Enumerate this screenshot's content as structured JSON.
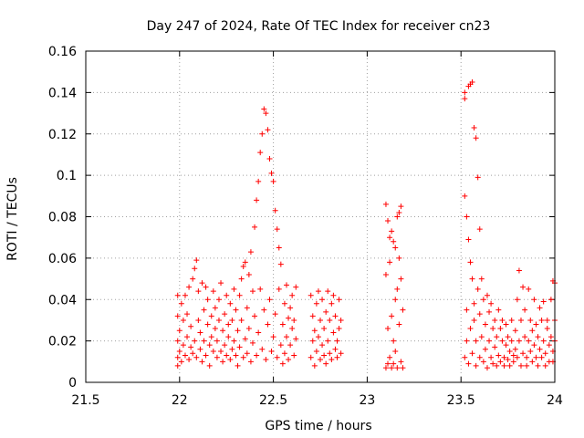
{
  "chart_data": {
    "type": "scatter",
    "title": "Day 247 of 2024, Rate Of TEC Index for receiver cn23",
    "xlabel": "GPS time / hours",
    "ylabel": "ROTI / TECUs",
    "xlim": [
      21.5,
      24
    ],
    "ylim": [
      0,
      0.16
    ],
    "xticks": [
      21.5,
      22,
      22.5,
      23,
      23.5,
      24
    ],
    "xtick_labels": [
      "21.5",
      "22",
      "22.5",
      "23",
      "23.5",
      "24"
    ],
    "yticks": [
      0,
      0.02,
      0.04,
      0.06,
      0.08,
      0.1,
      0.12,
      0.14,
      0.16
    ],
    "ytick_labels": [
      "0",
      "0.02",
      "0.04",
      "0.06",
      "0.08",
      "0.1",
      "0.12",
      "0.14",
      "0.16"
    ],
    "grid": true,
    "marker": "+",
    "marker_color": "#ff0000",
    "series": [
      {
        "name": "ROTI",
        "points": [
          [
            21.99,
            0.012
          ],
          [
            21.99,
            0.02
          ],
          [
            21.99,
            0.032
          ],
          [
            21.99,
            0.042
          ],
          [
            21.99,
            0.008
          ],
          [
            22.0,
            0.015
          ],
          [
            22.0,
            0.025
          ],
          [
            22.01,
            0.038
          ],
          [
            22.01,
            0.01
          ],
          [
            22.02,
            0.018
          ],
          [
            22.02,
            0.03
          ],
          [
            22.03,
            0.042
          ],
          [
            22.03,
            0.013
          ],
          [
            22.04,
            0.022
          ],
          [
            22.04,
            0.033
          ],
          [
            22.05,
            0.046
          ],
          [
            22.05,
            0.011
          ],
          [
            22.06,
            0.017
          ],
          [
            22.06,
            0.027
          ],
          [
            22.07,
            0.05
          ],
          [
            22.07,
            0.014
          ],
          [
            22.08,
            0.02
          ],
          [
            22.08,
            0.055
          ],
          [
            22.09,
            0.059
          ],
          [
            22.09,
            0.012
          ],
          [
            22.1,
            0.03
          ],
          [
            22.1,
            0.044
          ],
          [
            22.11,
            0.016
          ],
          [
            22.11,
            0.024
          ],
          [
            22.12,
            0.048
          ],
          [
            22.12,
            0.01
          ],
          [
            22.13,
            0.035
          ],
          [
            22.13,
            0.02
          ],
          [
            22.14,
            0.046
          ],
          [
            22.14,
            0.013
          ],
          [
            22.15,
            0.028
          ],
          [
            22.15,
            0.04
          ],
          [
            22.16,
            0.018
          ],
          [
            22.16,
            0.008
          ],
          [
            22.17,
            0.032
          ],
          [
            22.17,
            0.022
          ],
          [
            22.18,
            0.044
          ],
          [
            22.18,
            0.015
          ],
          [
            22.19,
            0.026
          ],
          [
            22.19,
            0.036
          ],
          [
            22.2,
            0.012
          ],
          [
            22.2,
            0.02
          ],
          [
            22.21,
            0.04
          ],
          [
            22.21,
            0.03
          ],
          [
            22.22,
            0.015
          ],
          [
            22.22,
            0.048
          ],
          [
            22.23,
            0.025
          ],
          [
            22.23,
            0.01
          ],
          [
            22.24,
            0.033
          ],
          [
            22.24,
            0.018
          ],
          [
            22.25,
            0.042
          ],
          [
            22.25,
            0.013
          ],
          [
            22.26,
            0.028
          ],
          [
            22.26,
            0.022
          ],
          [
            22.27,
            0.038
          ],
          [
            22.27,
            0.011
          ],
          [
            22.28,
            0.03
          ],
          [
            22.28,
            0.016
          ],
          [
            22.29,
            0.045
          ],
          [
            22.29,
            0.02
          ],
          [
            22.3,
            0.013
          ],
          [
            22.3,
            0.035
          ],
          [
            22.31,
            0.025
          ],
          [
            22.31,
            0.008
          ],
          [
            22.32,
            0.042
          ],
          [
            22.32,
            0.017
          ],
          [
            22.33,
            0.03
          ],
          [
            22.33,
            0.05
          ],
          [
            22.34,
            0.056
          ],
          [
            22.34,
            0.012
          ],
          [
            22.35,
            0.021
          ],
          [
            22.35,
            0.058
          ],
          [
            22.36,
            0.036
          ],
          [
            22.36,
            0.014
          ],
          [
            22.37,
            0.052
          ],
          [
            22.37,
            0.026
          ],
          [
            22.38,
            0.063
          ],
          [
            22.38,
            0.01
          ],
          [
            22.39,
            0.044
          ],
          [
            22.39,
            0.019
          ],
          [
            22.4,
            0.075
          ],
          [
            22.4,
            0.032
          ],
          [
            22.41,
            0.088
          ],
          [
            22.41,
            0.013
          ],
          [
            22.42,
            0.097
          ],
          [
            22.42,
            0.024
          ],
          [
            22.43,
            0.111
          ],
          [
            22.43,
            0.045
          ],
          [
            22.44,
            0.12
          ],
          [
            22.44,
            0.016
          ],
          [
            22.45,
            0.132
          ],
          [
            22.45,
            0.035
          ],
          [
            22.46,
            0.13
          ],
          [
            22.46,
            0.011
          ],
          [
            22.47,
            0.122
          ],
          [
            22.47,
            0.028
          ],
          [
            22.48,
            0.108
          ],
          [
            22.48,
            0.04
          ],
          [
            22.49,
            0.101
          ],
          [
            22.49,
            0.015
          ],
          [
            22.5,
            0.097
          ],
          [
            22.5,
            0.022
          ],
          [
            22.51,
            0.083
          ],
          [
            22.51,
            0.033
          ],
          [
            22.52,
            0.074
          ],
          [
            22.52,
            0.012
          ],
          [
            22.53,
            0.065
          ],
          [
            22.53,
            0.045
          ],
          [
            22.54,
            0.057
          ],
          [
            22.54,
            0.018
          ],
          [
            22.55,
            0.028
          ],
          [
            22.55,
            0.009
          ],
          [
            22.56,
            0.038
          ],
          [
            22.56,
            0.014
          ],
          [
            22.57,
            0.047
          ],
          [
            22.57,
            0.022
          ],
          [
            22.58,
            0.031
          ],
          [
            22.58,
            0.011
          ],
          [
            22.59,
            0.036
          ],
          [
            22.59,
            0.018
          ],
          [
            22.6,
            0.026
          ],
          [
            22.6,
            0.042
          ],
          [
            22.61,
            0.013
          ],
          [
            22.61,
            0.03
          ],
          [
            22.62,
            0.021
          ],
          [
            22.62,
            0.046
          ],
          [
            22.7,
            0.042
          ],
          [
            22.7,
            0.012
          ],
          [
            22.71,
            0.02
          ],
          [
            22.71,
            0.032
          ],
          [
            22.72,
            0.008
          ],
          [
            22.72,
            0.025
          ],
          [
            22.73,
            0.038
          ],
          [
            22.73,
            0.015
          ],
          [
            22.74,
            0.022
          ],
          [
            22.74,
            0.044
          ],
          [
            22.75,
            0.011
          ],
          [
            22.75,
            0.03
          ],
          [
            22.76,
            0.018
          ],
          [
            22.76,
            0.04
          ],
          [
            22.77,
            0.013
          ],
          [
            22.77,
            0.026
          ],
          [
            22.78,
            0.034
          ],
          [
            22.78,
            0.009
          ],
          [
            22.79,
            0.02
          ],
          [
            22.79,
            0.044
          ],
          [
            22.8,
            0.014
          ],
          [
            22.8,
            0.03
          ],
          [
            22.81,
            0.038
          ],
          [
            22.81,
            0.011
          ],
          [
            22.82,
            0.024
          ],
          [
            22.82,
            0.042
          ],
          [
            22.83,
            0.016
          ],
          [
            22.83,
            0.032
          ],
          [
            22.84,
            0.02
          ],
          [
            22.84,
            0.012
          ],
          [
            22.85,
            0.04
          ],
          [
            22.85,
            0.026
          ],
          [
            22.86,
            0.014
          ],
          [
            22.86,
            0.03
          ],
          [
            23.1,
            0.086
          ],
          [
            23.1,
            0.052
          ],
          [
            23.1,
            0.007
          ],
          [
            23.11,
            0.078
          ],
          [
            23.11,
            0.026
          ],
          [
            23.11,
            0.009
          ],
          [
            23.12,
            0.07
          ],
          [
            23.12,
            0.058
          ],
          [
            23.12,
            0.012
          ],
          [
            23.13,
            0.073
          ],
          [
            23.13,
            0.032
          ],
          [
            23.13,
            0.007
          ],
          [
            23.14,
            0.068
          ],
          [
            23.14,
            0.02
          ],
          [
            23.14,
            0.009
          ],
          [
            23.15,
            0.065
          ],
          [
            23.15,
            0.04
          ],
          [
            23.15,
            0.015
          ],
          [
            23.16,
            0.08
          ],
          [
            23.16,
            0.045
          ],
          [
            23.16,
            0.007
          ],
          [
            23.17,
            0.082
          ],
          [
            23.17,
            0.06
          ],
          [
            23.17,
            0.028
          ],
          [
            23.18,
            0.085
          ],
          [
            23.18,
            0.05
          ],
          [
            23.18,
            0.01
          ],
          [
            23.19,
            0.035
          ],
          [
            23.19,
            0.007
          ],
          [
            23.52,
            0.14
          ],
          [
            23.52,
            0.137
          ],
          [
            23.52,
            0.09
          ],
          [
            23.52,
            0.012
          ],
          [
            23.53,
            0.08
          ],
          [
            23.53,
            0.02
          ],
          [
            23.53,
            0.035
          ],
          [
            23.54,
            0.143
          ],
          [
            23.54,
            0.069
          ],
          [
            23.54,
            0.009
          ],
          [
            23.55,
            0.144
          ],
          [
            23.55,
            0.058
          ],
          [
            23.55,
            0.026
          ],
          [
            23.56,
            0.145
          ],
          [
            23.56,
            0.05
          ],
          [
            23.56,
            0.014
          ],
          [
            23.57,
            0.123
          ],
          [
            23.57,
            0.038
          ],
          [
            23.57,
            0.03
          ],
          [
            23.58,
            0.118
          ],
          [
            23.58,
            0.02
          ],
          [
            23.58,
            0.008
          ],
          [
            23.59,
            0.099
          ],
          [
            23.59,
            0.045
          ],
          [
            23.6,
            0.074
          ],
          [
            23.6,
            0.033
          ],
          [
            23.6,
            0.012
          ],
          [
            23.61,
            0.05
          ],
          [
            23.61,
            0.022
          ],
          [
            23.62,
            0.04
          ],
          [
            23.62,
            0.01
          ],
          [
            23.63,
            0.028
          ],
          [
            23.63,
            0.016
          ],
          [
            23.64,
            0.042
          ],
          [
            23.64,
            0.007
          ],
          [
            23.65,
            0.034
          ],
          [
            23.65,
            0.02
          ],
          [
            23.66,
            0.038
          ],
          [
            23.66,
            0.012
          ],
          [
            23.67,
            0.026
          ],
          [
            23.67,
            0.009
          ],
          [
            23.68,
            0.03
          ],
          [
            23.68,
            0.017
          ],
          [
            23.69,
            0.022
          ],
          [
            23.69,
            0.008
          ],
          [
            23.7,
            0.035
          ],
          [
            23.7,
            0.013
          ],
          [
            23.71,
            0.026
          ],
          [
            23.71,
            0.01
          ],
          [
            23.72,
            0.02
          ],
          [
            23.72,
            0.03
          ],
          [
            23.73,
            0.012
          ],
          [
            23.73,
            0.008
          ],
          [
            23.74,
            0.018
          ],
          [
            23.74,
            0.028
          ],
          [
            23.75,
            0.011
          ],
          [
            23.75,
            0.022
          ],
          [
            23.76,
            0.015
          ],
          [
            23.76,
            0.008
          ],
          [
            23.77,
            0.02
          ],
          [
            23.77,
            0.03
          ],
          [
            23.78,
            0.013
          ],
          [
            23.78,
            0.01
          ],
          [
            23.79,
            0.025
          ],
          [
            23.79,
            0.016
          ],
          [
            23.8,
            0.04
          ],
          [
            23.8,
            0.012
          ],
          [
            23.81,
            0.054
          ],
          [
            23.81,
            0.02
          ],
          [
            23.82,
            0.03
          ],
          [
            23.82,
            0.008
          ],
          [
            23.83,
            0.046
          ],
          [
            23.83,
            0.014
          ],
          [
            23.84,
            0.022
          ],
          [
            23.84,
            0.035
          ],
          [
            23.85,
            0.012
          ],
          [
            23.85,
            0.008
          ],
          [
            23.86,
            0.045
          ],
          [
            23.86,
            0.02
          ],
          [
            23.87,
            0.03
          ],
          [
            23.87,
            0.015
          ],
          [
            23.88,
            0.025
          ],
          [
            23.88,
            0.01
          ],
          [
            23.89,
            0.04
          ],
          [
            23.89,
            0.018
          ],
          [
            23.9,
            0.028
          ],
          [
            23.9,
            0.012
          ],
          [
            23.91,
            0.022
          ],
          [
            23.91,
            0.008
          ],
          [
            23.92,
            0.036
          ],
          [
            23.92,
            0.016
          ],
          [
            23.93,
            0.03
          ],
          [
            23.93,
            0.012
          ],
          [
            23.94,
            0.039
          ],
          [
            23.94,
            0.02
          ],
          [
            23.95,
            0.014
          ],
          [
            23.95,
            0.008
          ],
          [
            23.96,
            0.026
          ],
          [
            23.96,
            0.03
          ],
          [
            23.97,
            0.018
          ],
          [
            23.97,
            0.01
          ],
          [
            23.98,
            0.022
          ],
          [
            23.98,
            0.04
          ],
          [
            23.99,
            0.015
          ],
          [
            23.99,
            0.049
          ],
          [
            23.99,
            0.01
          ],
          [
            24.0,
            0.03
          ],
          [
            24.0,
            0.02
          ],
          [
            24.0,
            0.048
          ]
        ]
      }
    ]
  }
}
